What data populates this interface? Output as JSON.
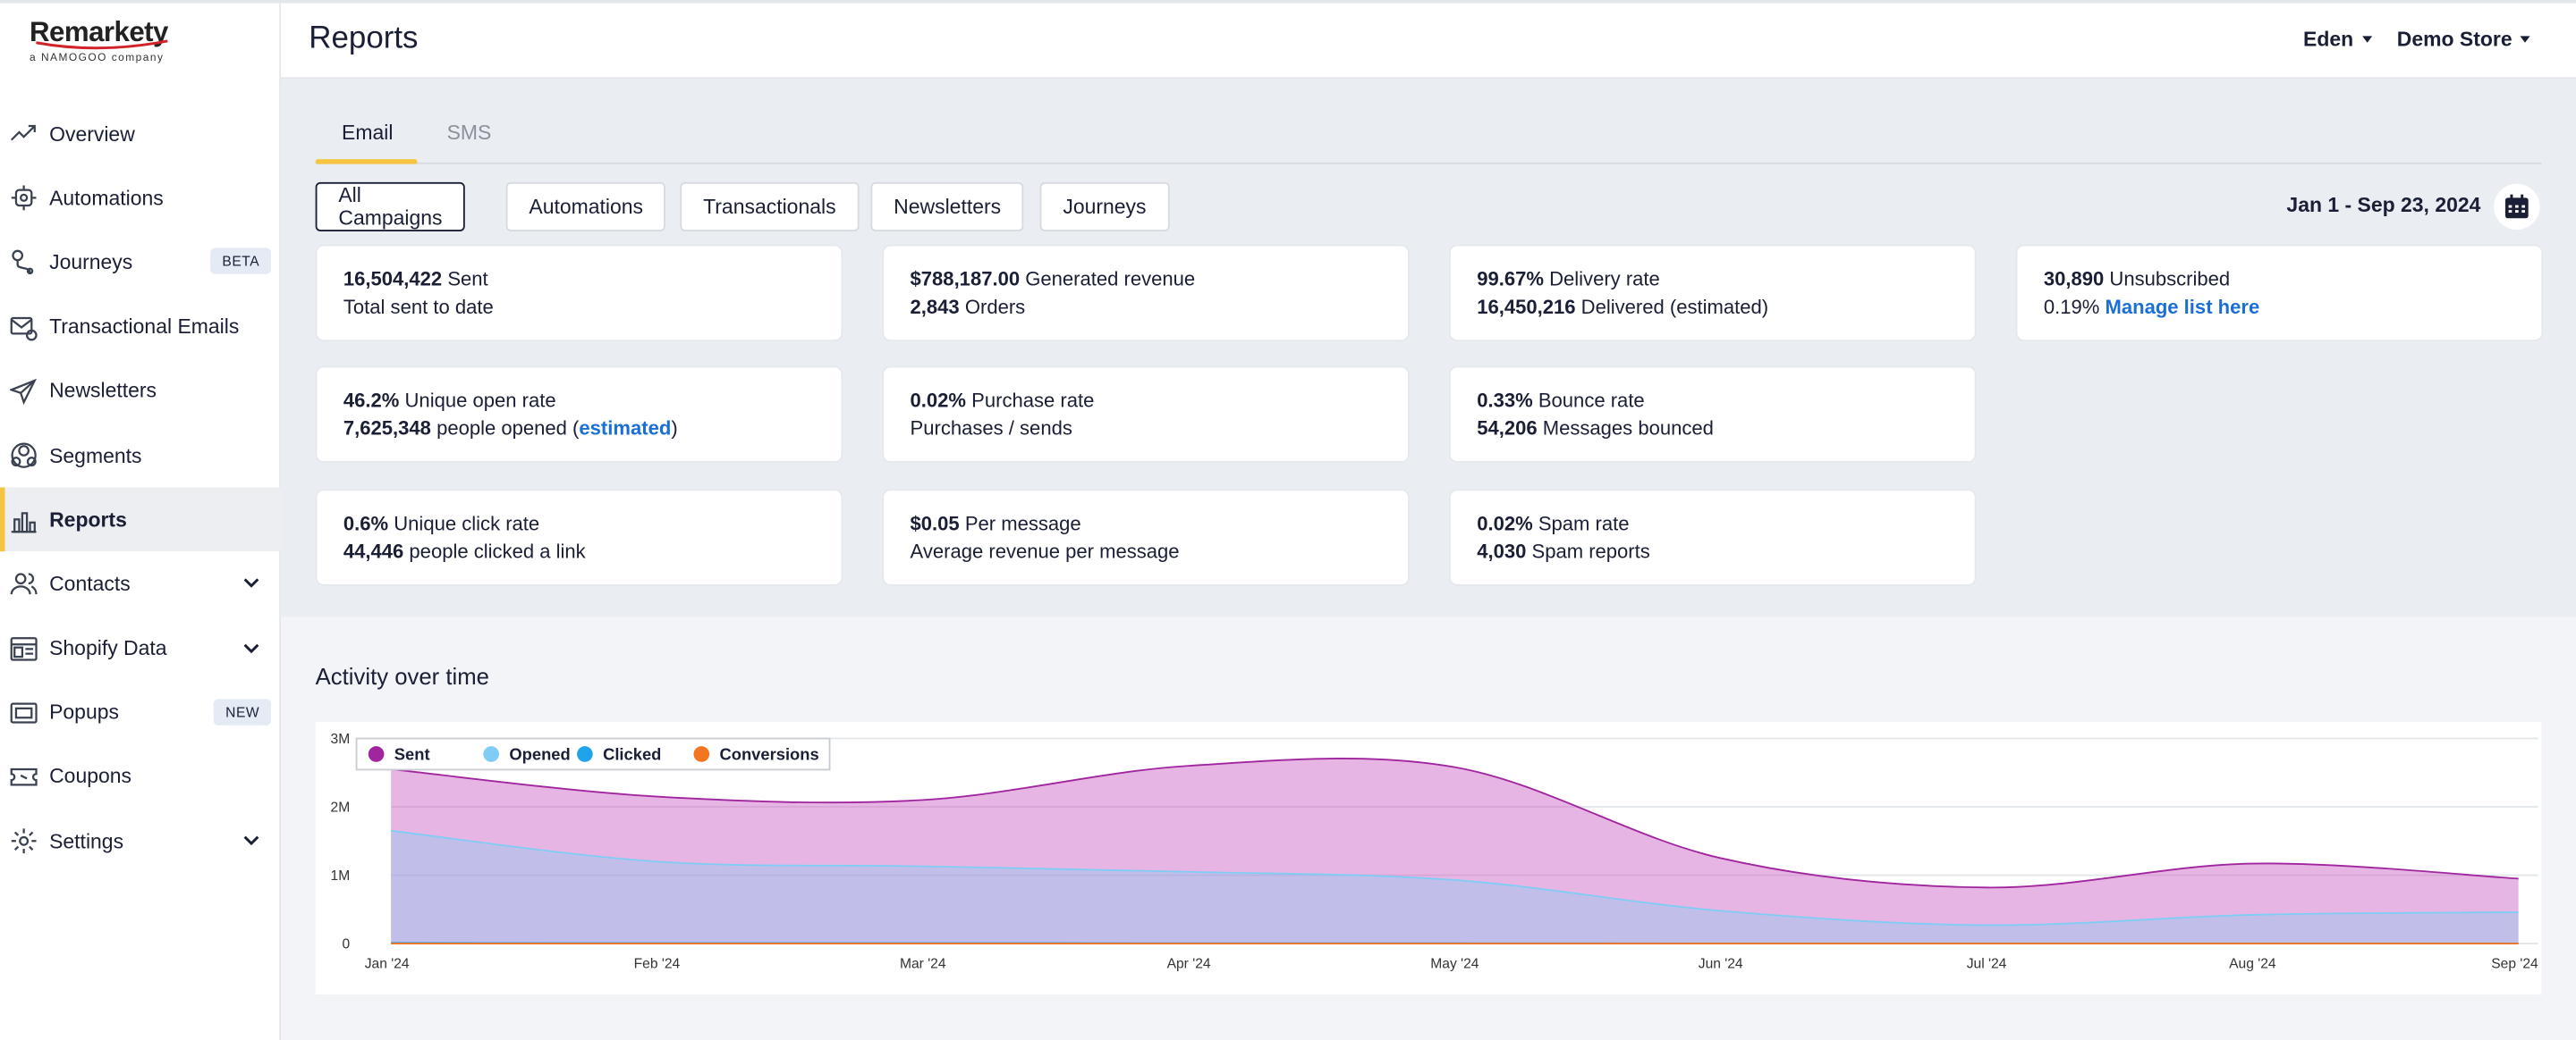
{
  "brand": {
    "name": "Remarkety",
    "sub": "a NAMOGOO company"
  },
  "sidebar": {
    "items": [
      {
        "label": "Overview",
        "icon": "trend-up-icon"
      },
      {
        "label": "Automations",
        "icon": "automation-icon"
      },
      {
        "label": "Journeys",
        "icon": "journey-pin-icon",
        "badge": "BETA"
      },
      {
        "label": "Transactional Emails",
        "icon": "mail-settings-icon"
      },
      {
        "label": "Newsletters",
        "icon": "paper-plane-icon"
      },
      {
        "label": "Segments",
        "icon": "segments-icon"
      },
      {
        "label": "Reports",
        "icon": "bar-chart-icon",
        "active": true
      },
      {
        "label": "Contacts",
        "icon": "contacts-icon",
        "expandable": true
      },
      {
        "label": "Shopify Data",
        "icon": "shopify-data-icon",
        "expandable": true
      },
      {
        "label": "Popups",
        "icon": "popup-icon",
        "badge": "NEW"
      },
      {
        "label": "Coupons",
        "icon": "coupon-icon"
      },
      {
        "label": "Settings",
        "icon": "gear-icon",
        "expandable": true
      }
    ]
  },
  "header": {
    "title": "Reports",
    "user_menu": "Eden",
    "store_menu": "Demo Store"
  },
  "tabs": [
    {
      "label": "Email",
      "active": true
    },
    {
      "label": "SMS",
      "active": false
    }
  ],
  "filters": [
    {
      "label": "All Campaigns",
      "active": true
    },
    {
      "label": "Automations"
    },
    {
      "label": "Transactionals"
    },
    {
      "label": "Newsletters"
    },
    {
      "label": "Journeys"
    }
  ],
  "date_range": "Jan 1 - Sep 23, 2024",
  "cards": {
    "sent": {
      "value": "16,504,422",
      "label": "Sent",
      "line2": "Total sent to date"
    },
    "revenue": {
      "value": "$788,187.00",
      "label": "Generated revenue",
      "orders_value": "2,843",
      "orders_label": "Orders"
    },
    "delivery": {
      "value": "99.67%",
      "label": "Delivery rate",
      "delivered_value": "16,450,216",
      "delivered_label": "Delivered (estimated)"
    },
    "unsub": {
      "value": "30,890",
      "label": "Unsubscribed",
      "rate": "0.19%",
      "link": "Manage list here"
    },
    "open": {
      "value": "46.2%",
      "label": "Unique open rate",
      "people_value": "7,625,348",
      "people_label": "people opened (",
      "link": "estimated",
      "close": ")"
    },
    "purchase": {
      "value": "0.02%",
      "label": "Purchase rate",
      "line2": "Purchases / sends"
    },
    "bounce": {
      "value": "0.33%",
      "label": "Bounce rate",
      "count_value": "54,206",
      "count_label": "Messages bounced"
    },
    "click": {
      "value": "0.6%",
      "label": "Unique click rate",
      "people_value": "44,446",
      "people_label": "people clicked a link"
    },
    "per_message": {
      "value": "$0.05",
      "label": "Per message",
      "line2": "Average revenue per message"
    },
    "spam": {
      "value": "0.02%",
      "label": "Spam rate",
      "count_value": "4,030",
      "count_label": "Spam reports"
    }
  },
  "chart_section_title": "Activity over time",
  "colors": {
    "accent": "#f5c542",
    "sent": "#a0259e",
    "opened": "#7fcdf5",
    "clicked": "#1fa3ea",
    "conversions": "#f47521",
    "link": "#1a6fd6"
  },
  "chart_data": {
    "type": "area",
    "title": "",
    "x": [
      "Jan '24",
      "Feb '24",
      "Mar '24",
      "Apr '24",
      "May '24",
      "Jun '24",
      "Jul '24",
      "Aug '24",
      "Sep '24"
    ],
    "y_ticks": [
      "0",
      "1M",
      "2M",
      "3M"
    ],
    "ylim": [
      0,
      3000000
    ],
    "legend_position": "top-left",
    "series": [
      {
        "name": "Sent",
        "color": "#a0259e",
        "values": [
          2550000,
          2150000,
          2100000,
          2600000,
          2580000,
          1250000,
          820000,
          1170000,
          950000
        ]
      },
      {
        "name": "Opened",
        "color": "#7fcdf5",
        "values": [
          1650000,
          1200000,
          1130000,
          1050000,
          930000,
          480000,
          270000,
          420000,
          460000
        ]
      },
      {
        "name": "Clicked",
        "color": "#1fa3ea",
        "values": [
          10000,
          7000,
          7000,
          6000,
          5000,
          3000,
          2000,
          3000,
          3000
        ]
      },
      {
        "name": "Conversions",
        "color": "#f47521",
        "values": [
          400,
          300,
          300,
          300,
          250,
          150,
          100,
          150,
          120
        ]
      }
    ]
  }
}
